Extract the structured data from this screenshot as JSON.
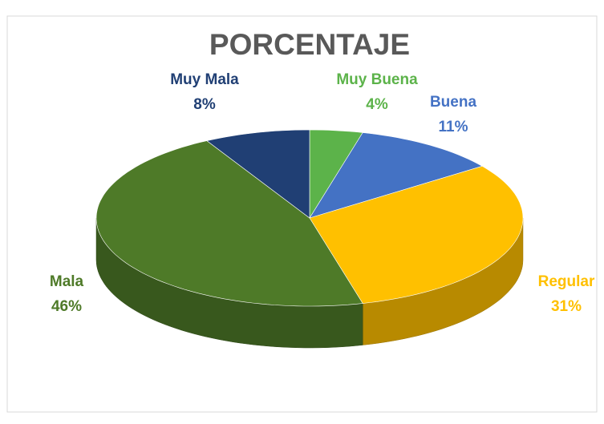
{
  "chart_data": {
    "type": "pie",
    "title": "PORCENTAJE",
    "categories": [
      "Muy Buena",
      "Buena",
      "Regular",
      "Mala",
      "Muy Mala"
    ],
    "values": [
      4,
      11,
      31,
      46,
      8
    ],
    "value_labels": [
      "4%",
      "11%",
      "31%",
      "46%",
      "8%"
    ],
    "colors": [
      "#5cb34a",
      "#4472c4",
      "#ffc000",
      "#4e7a28",
      "#203f74"
    ]
  }
}
